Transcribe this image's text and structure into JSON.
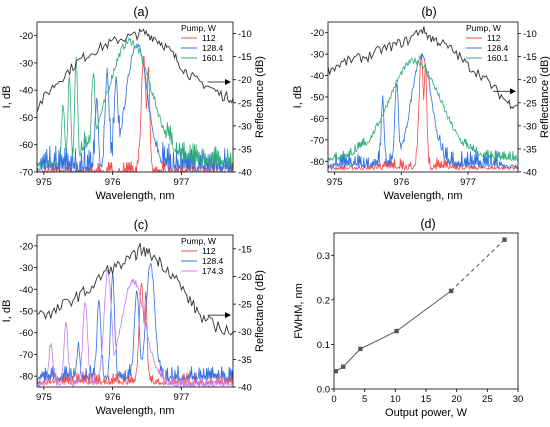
{
  "chart_data": [
    {
      "type": "line",
      "panel_label": "(a)",
      "xlabel": "Wavelength, nm",
      "ylabel": "I, dB",
      "ylabel_right": "Reflectance (dB)",
      "xlim": [
        974.9,
        977.75
      ],
      "ylim": [
        -70,
        -15
      ],
      "ylim_right": [
        -40,
        -7.5
      ],
      "x_ticks": [
        975,
        976,
        977
      ],
      "y_ticks": [
        -20,
        -30,
        -40,
        -50,
        -60,
        -70
      ],
      "y_ticks_right": [
        -10,
        -15,
        -20,
        -25,
        -30,
        -35,
        -40
      ],
      "legend_title": "Pump, W",
      "series": [
        {
          "name": "112",
          "color": "#ef4b4b",
          "peaks": [
            [
              976.45,
              -28,
              0.05
            ],
            [
              976.52,
              -32,
              0.03
            ]
          ],
          "floor": -71,
          "noise_top": -66,
          "noise_range": [
            975.0,
            977.75
          ]
        },
        {
          "name": "128.4",
          "color": "#2f6fe0",
          "peaks": [
            [
              976.35,
              -23,
              0.22
            ],
            [
              975.92,
              -33,
              0.04
            ],
            [
              976.05,
              -36,
              0.04
            ],
            [
              975.77,
              -43,
              0.03
            ]
          ],
          "floor": -70,
          "noise_top": -60,
          "noise_range": [
            974.95,
            977.75
          ]
        },
        {
          "name": "160.1",
          "color": "#2fae7a",
          "peaks": [
            [
              976.25,
              -22,
              0.45
            ],
            [
              975.47,
              -28,
              0.03
            ],
            [
              975.37,
              -35,
              0.03
            ],
            [
              975.28,
              -45,
              0.03
            ],
            [
              975.72,
              -33,
              0.04
            ]
          ],
          "floor": -68,
          "noise_top": -60,
          "noise_range": [
            975.5,
            977.75
          ]
        }
      ],
      "reflectance": {
        "color": "#333333",
        "arrow_at_x": 977.38,
        "arrow_at_y": -20.5,
        "points": [
          [
            974.9,
            -26
          ],
          [
            975.1,
            -22
          ],
          [
            975.3,
            -19
          ],
          [
            975.5,
            -16
          ],
          [
            975.7,
            -14
          ],
          [
            975.9,
            -12.5
          ],
          [
            976.1,
            -11.2
          ],
          [
            976.3,
            -10.5
          ],
          [
            976.45,
            -9.8
          ],
          [
            976.6,
            -10.8
          ],
          [
            976.75,
            -12.5
          ],
          [
            976.9,
            -15
          ],
          [
            977.05,
            -18
          ],
          [
            977.2,
            -20
          ],
          [
            977.4,
            -21.5
          ],
          [
            977.6,
            -23.5
          ],
          [
            977.75,
            -24
          ]
        ]
      }
    },
    {
      "type": "line",
      "panel_label": "(b)",
      "xlabel": "Wavelength, nm",
      "ylabel": "I, dB",
      "ylabel_right": "Reflectance (dB)",
      "xlim": [
        974.9,
        977.75
      ],
      "ylim": [
        -85,
        -15
      ],
      "ylim_right": [
        -40,
        -7.5
      ],
      "x_ticks": [
        975,
        976,
        977
      ],
      "y_ticks": [
        -20,
        -30,
        -40,
        -50,
        -60,
        -70,
        -80
      ],
      "y_ticks_right": [
        -10,
        -15,
        -20,
        -25,
        -30,
        -35,
        -40
      ],
      "legend_title": "Pump, W",
      "series": [
        {
          "name": "112",
          "color": "#ef4b4b",
          "peaks": [
            [
              976.3,
              -31,
              0.05
            ],
            [
              976.36,
              -34,
              0.03
            ]
          ],
          "floor": -84,
          "noise_top": -78,
          "noise_range": [
            975.6,
            977.0
          ]
        },
        {
          "name": "128.4",
          "color": "#2f6fe0",
          "peaks": [
            [
              976.3,
              -31,
              0.22
            ],
            [
              975.93,
              -43,
              0.04
            ],
            [
              975.72,
              -50,
              0.03
            ]
          ],
          "floor": -83,
          "noise_top": -75,
          "noise_range": [
            975.0,
            977.5
          ]
        },
        {
          "name": "160.1",
          "color": "#2fae7a",
          "peaks": [
            [
              976.2,
              -33,
              0.55
            ]
          ],
          "floor": -80,
          "noise_top": -75,
          "noise_range": [
            974.95,
            977.75
          ]
        }
      ],
      "reflectance": {
        "color": "#333333",
        "arrow_at_x": 977.38,
        "arrow_at_y": -22.5,
        "points": [
          [
            974.9,
            -18
          ],
          [
            975.1,
            -16.5
          ],
          [
            975.3,
            -15.5
          ],
          [
            975.5,
            -15
          ],
          [
            975.7,
            -13.5
          ],
          [
            975.9,
            -12.5
          ],
          [
            976.1,
            -11.5
          ],
          [
            976.3,
            -9
          ],
          [
            976.45,
            -11
          ],
          [
            976.6,
            -12
          ],
          [
            976.8,
            -14
          ],
          [
            977.0,
            -17
          ],
          [
            977.2,
            -19
          ],
          [
            977.4,
            -22
          ],
          [
            977.6,
            -25
          ],
          [
            977.75,
            -25.5
          ]
        ]
      }
    },
    {
      "type": "line",
      "panel_label": "(c)",
      "xlabel": "Wavelength, nm",
      "ylabel": "I, dB",
      "ylabel_right": "Reflectance (dB)",
      "xlim": [
        974.9,
        977.75
      ],
      "ylim": [
        -85,
        -15
      ],
      "ylim_right": [
        -40,
        -12.5
      ],
      "x_ticks": [
        975,
        976,
        977
      ],
      "y_ticks": [
        -20,
        -30,
        -40,
        -50,
        -60,
        -70,
        -80
      ],
      "y_ticks_right": [
        -15,
        -20,
        -25,
        -30,
        -35,
        -40
      ],
      "legend_title": "Pump, W",
      "series": [
        {
          "name": "112",
          "color": "#ef4b4b",
          "peaks": [
            [
              976.42,
              -38,
              0.05
            ],
            [
              976.48,
              -42,
              0.03
            ]
          ],
          "floor": -84,
          "noise_top": -78,
          "noise_range": [
            975.0,
            977.75
          ]
        },
        {
          "name": "128.4",
          "color": "#2f6fe0",
          "peaks": [
            [
              976.55,
              -28,
              0.09
            ],
            [
              976.0,
              -33,
              0.04
            ],
            [
              975.8,
              -45,
              0.04
            ],
            [
              975.5,
              -65,
              0.03
            ],
            [
              976.35,
              -40,
              0.05
            ]
          ],
          "floor": -82,
          "noise_top": -75,
          "noise_range": [
            974.95,
            977.75
          ]
        },
        {
          "name": "174.3",
          "color": "#c57bf0",
          "peaks": [
            [
              975.93,
              -32,
              0.08
            ],
            [
              976.3,
              -36,
              0.25
            ],
            [
              975.6,
              -46,
              0.05
            ],
            [
              975.32,
              -55,
              0.04
            ],
            [
              975.1,
              -65,
              0.04
            ]
          ],
          "floor": -85,
          "noise_top": -80,
          "noise_range": [
            974.95,
            977.75
          ]
        }
      ],
      "reflectance": {
        "color": "#333333",
        "arrow_at_x": 977.38,
        "arrow_at_y": -27,
        "points": [
          [
            974.9,
            -26
          ],
          [
            975.1,
            -27
          ],
          [
            975.3,
            -25
          ],
          [
            975.5,
            -23.5
          ],
          [
            975.7,
            -22
          ],
          [
            975.9,
            -19
          ],
          [
            976.1,
            -18
          ],
          [
            976.3,
            -16.5
          ],
          [
            976.4,
            -15
          ],
          [
            976.55,
            -16
          ],
          [
            976.7,
            -17.5
          ],
          [
            976.9,
            -20
          ],
          [
            977.1,
            -24
          ],
          [
            977.3,
            -27.5
          ],
          [
            977.5,
            -29
          ],
          [
            977.75,
            -30
          ]
        ]
      }
    },
    {
      "type": "line",
      "panel_label": "(d)",
      "xlabel": "Output power, W",
      "ylabel": "FWHM, nm",
      "xlim": [
        0,
        30
      ],
      "ylim": [
        0,
        0.35
      ],
      "x_ticks": [
        0,
        5,
        10,
        15,
        20,
        25,
        30
      ],
      "y_ticks": [
        0.0,
        0.1,
        0.2,
        0.3
      ],
      "x": [
        0.3,
        1.5,
        4.3,
        10.2,
        19.1,
        27.8
      ],
      "y": [
        0.04,
        0.05,
        0.09,
        0.13,
        0.22,
        0.335
      ],
      "dashed_from_index": 4,
      "color": "#555555"
    }
  ]
}
